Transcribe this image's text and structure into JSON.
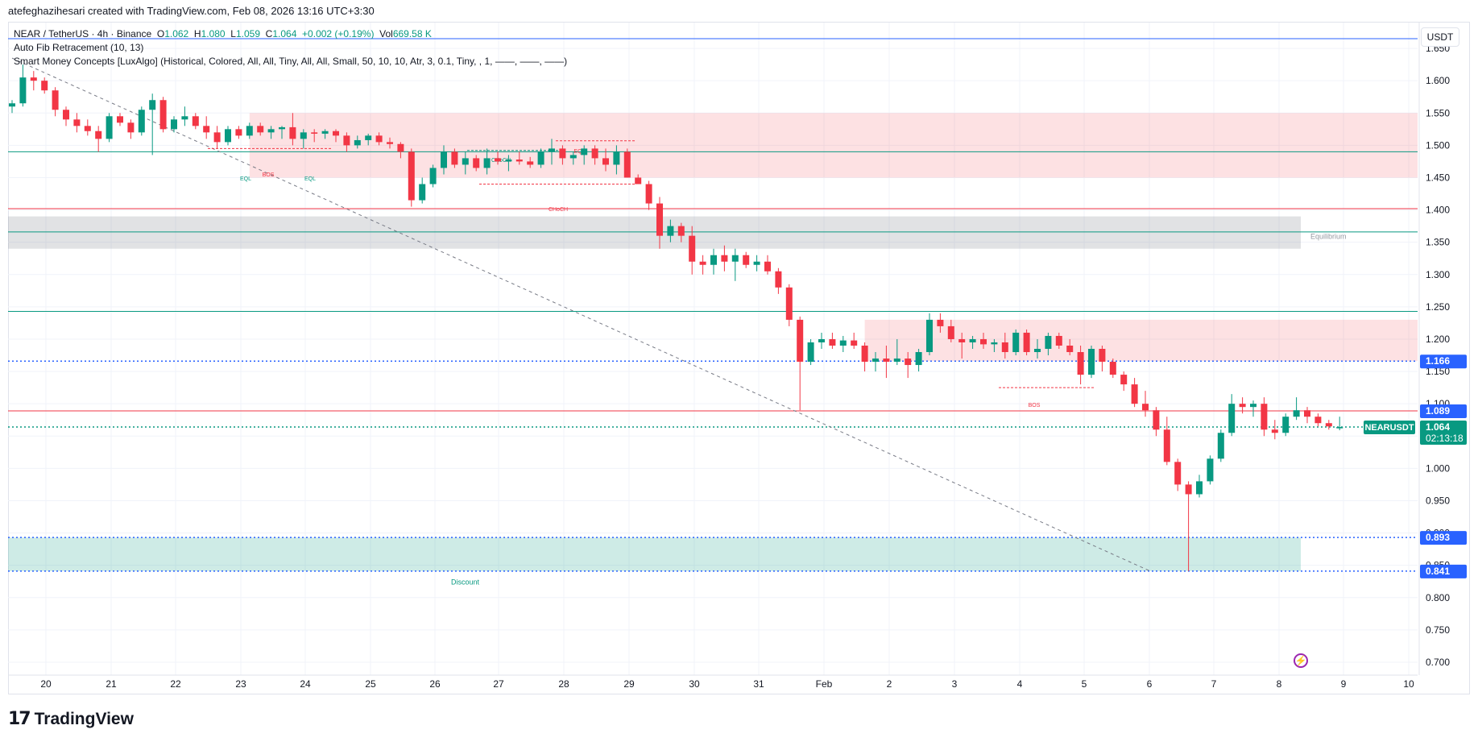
{
  "caption": "atefeghazihesari created with TradingView.com, Feb 08, 2026 13:16 UTC+3:30",
  "legend": {
    "symbol": "NEAR / TetherUS · 4h · Binance",
    "o_label": "O",
    "o": "1.062",
    "h_label": "H",
    "h": "1.080",
    "l_label": "L",
    "l": "1.059",
    "c_label": "C",
    "c": "1.064",
    "change": "+0.002 (+0.19%)",
    "vol_label": "Vol",
    "vol": "669.58 K",
    "ind1": "Auto Fib Retracement (10, 13)",
    "ind2": "Smart Money Concepts [LuxAlgo] (Historical, Colored, All, All, Tiny, All, All, Small, 50, 10, 10, Atr, 3, 0.1, Tiny, , 1, ——, ——, ——)"
  },
  "currency": "USDT",
  "brand": "TradingView",
  "colors": {
    "up": "#089981",
    "down": "#f23645",
    "blue": "#2962ff",
    "premium": "#f23645",
    "discount": "#089981",
    "equilibrium": "#c9c9c9"
  },
  "chart_data": {
    "type": "candlestick",
    "symbol": "NEARUSDT",
    "interval": "4h",
    "x_axis": {
      "tick_labels": [
        "20",
        "21",
        "22",
        "23",
        "24",
        "25",
        "26",
        "27",
        "28",
        "29",
        "30",
        "31",
        "Feb",
        "2",
        "3",
        "4",
        "5",
        "6",
        "7",
        "8",
        "9",
        "10"
      ]
    },
    "y_axis": {
      "range": [
        0.68,
        1.69
      ],
      "tick_labels": [
        "1.650",
        "1.600",
        "1.550",
        "1.500",
        "1.450",
        "1.400",
        "1.350",
        "1.300",
        "1.250",
        "1.200",
        "1.150",
        "1.100",
        "1.050",
        "1.000",
        "0.950",
        "0.900",
        "0.850",
        "0.800",
        "0.750",
        "0.700"
      ]
    },
    "price_tags": [
      {
        "value": "1.166",
        "color": "#2962ff"
      },
      {
        "value": "1.089",
        "color": "#2962ff"
      },
      {
        "value": "1.064",
        "sub": "02:13:18",
        "label": "NEARUSDT",
        "color": "#089981"
      },
      {
        "value": "0.893",
        "color": "#2962ff"
      },
      {
        "value": "0.841",
        "color": "#2962ff"
      }
    ],
    "candles": [
      [
        1.56,
        1.57,
        1.55,
        1.565
      ],
      [
        1.565,
        1.625,
        1.56,
        1.605
      ],
      [
        1.605,
        1.615,
        1.585,
        1.6
      ],
      [
        1.6,
        1.605,
        1.58,
        1.585
      ],
      [
        1.585,
        1.59,
        1.545,
        1.555
      ],
      [
        1.555,
        1.56,
        1.53,
        1.54
      ],
      [
        1.54,
        1.55,
        1.52,
        1.53
      ],
      [
        1.53,
        1.54,
        1.515,
        1.522
      ],
      [
        1.522,
        1.53,
        1.49,
        1.51
      ],
      [
        1.51,
        1.55,
        1.505,
        1.545
      ],
      [
        1.545,
        1.55,
        1.53,
        1.535
      ],
      [
        1.535,
        1.54,
        1.51,
        1.52
      ],
      [
        1.52,
        1.56,
        1.515,
        1.555
      ],
      [
        1.555,
        1.58,
        1.485,
        1.57
      ],
      [
        1.57,
        1.575,
        1.52,
        1.525
      ],
      [
        1.525,
        1.545,
        1.52,
        1.54
      ],
      [
        1.54,
        1.56,
        1.53,
        1.545
      ],
      [
        1.545,
        1.55,
        1.525,
        1.53
      ],
      [
        1.53,
        1.545,
        1.51,
        1.52
      ],
      [
        1.52,
        1.53,
        1.495,
        1.505
      ],
      [
        1.505,
        1.53,
        1.5,
        1.525
      ],
      [
        1.525,
        1.53,
        1.51,
        1.515
      ],
      [
        1.515,
        1.535,
        1.51,
        1.53
      ],
      [
        1.53,
        1.535,
        1.515,
        1.52
      ],
      [
        1.52,
        1.53,
        1.51,
        1.525
      ],
      [
        1.525,
        1.53,
        1.51,
        1.528
      ],
      [
        1.528,
        1.55,
        1.5,
        1.51
      ],
      [
        1.51,
        1.525,
        1.495,
        1.52
      ],
      [
        1.52,
        1.525,
        1.505,
        1.518
      ],
      [
        1.518,
        1.525,
        1.51,
        1.522
      ],
      [
        1.522,
        1.525,
        1.505,
        1.515
      ],
      [
        1.515,
        1.52,
        1.49,
        1.5
      ],
      [
        1.5,
        1.515,
        1.495,
        1.508
      ],
      [
        1.508,
        1.518,
        1.5,
        1.515
      ],
      [
        1.515,
        1.52,
        1.5,
        1.505
      ],
      [
        1.505,
        1.512,
        1.495,
        1.502
      ],
      [
        1.502,
        1.505,
        1.48,
        1.49
      ],
      [
        1.49,
        1.495,
        1.405,
        1.415
      ],
      [
        1.415,
        1.45,
        1.41,
        1.44
      ],
      [
        1.44,
        1.47,
        1.435,
        1.465
      ],
      [
        1.465,
        1.5,
        1.455,
        1.49
      ],
      [
        1.49,
        1.495,
        1.465,
        1.47
      ],
      [
        1.47,
        1.49,
        1.455,
        1.48
      ],
      [
        1.48,
        1.485,
        1.46,
        1.465
      ],
      [
        1.465,
        1.495,
        1.455,
        1.48
      ],
      [
        1.48,
        1.49,
        1.47,
        1.475
      ],
      [
        1.475,
        1.485,
        1.46,
        1.478
      ],
      [
        1.478,
        1.49,
        1.47,
        1.475
      ],
      [
        1.475,
        1.482,
        1.465,
        1.47
      ],
      [
        1.47,
        1.495,
        1.465,
        1.49
      ],
      [
        1.49,
        1.51,
        1.47,
        1.495
      ],
      [
        1.495,
        1.5,
        1.47,
        1.48
      ],
      [
        1.48,
        1.49,
        1.47,
        1.485
      ],
      [
        1.485,
        1.5,
        1.47,
        1.495
      ],
      [
        1.495,
        1.5,
        1.47,
        1.48
      ],
      [
        1.48,
        1.495,
        1.46,
        1.47
      ],
      [
        1.47,
        1.5,
        1.455,
        1.49
      ],
      [
        1.49,
        1.495,
        1.45,
        1.45
      ],
      [
        1.45,
        1.455,
        1.44,
        1.44
      ],
      [
        1.44,
        1.445,
        1.4,
        1.41
      ],
      [
        1.41,
        1.42,
        1.34,
        1.36
      ],
      [
        1.36,
        1.385,
        1.35,
        1.375
      ],
      [
        1.375,
        1.38,
        1.35,
        1.36
      ],
      [
        1.36,
        1.375,
        1.3,
        1.32
      ],
      [
        1.32,
        1.33,
        1.3,
        1.315
      ],
      [
        1.315,
        1.34,
        1.3,
        1.33
      ],
      [
        1.33,
        1.345,
        1.305,
        1.32
      ],
      [
        1.32,
        1.34,
        1.29,
        1.33
      ],
      [
        1.33,
        1.335,
        1.31,
        1.315
      ],
      [
        1.315,
        1.33,
        1.305,
        1.32
      ],
      [
        1.32,
        1.33,
        1.3,
        1.305
      ],
      [
        1.305,
        1.31,
        1.27,
        1.28
      ],
      [
        1.28,
        1.285,
        1.22,
        1.23
      ],
      [
        1.23,
        1.235,
        1.09,
        1.165
      ],
      [
        1.165,
        1.2,
        1.16,
        1.195
      ],
      [
        1.195,
        1.21,
        1.185,
        1.2
      ],
      [
        1.2,
        1.21,
        1.185,
        1.19
      ],
      [
        1.19,
        1.205,
        1.18,
        1.198
      ],
      [
        1.198,
        1.21,
        1.185,
        1.19
      ],
      [
        1.19,
        1.195,
        1.15,
        1.165
      ],
      [
        1.165,
        1.18,
        1.15,
        1.17
      ],
      [
        1.17,
        1.19,
        1.14,
        1.165
      ],
      [
        1.165,
        1.2,
        1.16,
        1.17
      ],
      [
        1.17,
        1.18,
        1.14,
        1.16
      ],
      [
        1.16,
        1.185,
        1.15,
        1.18
      ],
      [
        1.18,
        1.24,
        1.175,
        1.23
      ],
      [
        1.23,
        1.24,
        1.21,
        1.22
      ],
      [
        1.22,
        1.23,
        1.195,
        1.2
      ],
      [
        1.2,
        1.21,
        1.17,
        1.195
      ],
      [
        1.195,
        1.205,
        1.185,
        1.2
      ],
      [
        1.2,
        1.21,
        1.185,
        1.192
      ],
      [
        1.192,
        1.2,
        1.18,
        1.195
      ],
      [
        1.195,
        1.21,
        1.17,
        1.18
      ],
      [
        1.18,
        1.215,
        1.175,
        1.21
      ],
      [
        1.21,
        1.215,
        1.175,
        1.18
      ],
      [
        1.18,
        1.2,
        1.17,
        1.185
      ],
      [
        1.185,
        1.21,
        1.175,
        1.205
      ],
      [
        1.205,
        1.21,
        1.185,
        1.19
      ],
      [
        1.19,
        1.2,
        1.175,
        1.18
      ],
      [
        1.18,
        1.19,
        1.13,
        1.145
      ],
      [
        1.145,
        1.19,
        1.14,
        1.185
      ],
      [
        1.185,
        1.19,
        1.15,
        1.165
      ],
      [
        1.165,
        1.17,
        1.14,
        1.145
      ],
      [
        1.145,
        1.15,
        1.12,
        1.13
      ],
      [
        1.13,
        1.14,
        1.095,
        1.1
      ],
      [
        1.1,
        1.12,
        1.08,
        1.09
      ],
      [
        1.09,
        1.095,
        1.05,
        1.06
      ],
      [
        1.06,
        1.08,
        1.005,
        1.01
      ],
      [
        1.01,
        1.015,
        0.965,
        0.975
      ],
      [
        0.975,
        0.98,
        0.841,
        0.96
      ],
      [
        0.96,
        0.99,
        0.955,
        0.98
      ],
      [
        0.98,
        1.02,
        0.975,
        1.015
      ],
      [
        1.015,
        1.06,
        1.01,
        1.055
      ],
      [
        1.055,
        1.115,
        1.05,
        1.1
      ],
      [
        1.1,
        1.11,
        1.085,
        1.095
      ],
      [
        1.095,
        1.105,
        1.08,
        1.1
      ],
      [
        1.1,
        1.11,
        1.05,
        1.06
      ],
      [
        1.06,
        1.075,
        1.045,
        1.055
      ],
      [
        1.055,
        1.085,
        1.05,
        1.08
      ],
      [
        1.08,
        1.11,
        1.075,
        1.09
      ],
      [
        1.09,
        1.095,
        1.07,
        1.08
      ],
      [
        1.08,
        1.085,
        1.065,
        1.07
      ],
      [
        1.07,
        1.075,
        1.06,
        1.065
      ],
      [
        1.062,
        1.08,
        1.059,
        1.064
      ]
    ],
    "overlays": {
      "premium_zone": {
        "top": 1.55,
        "bottom": 1.45,
        "label": ""
      },
      "equilibrium_zone": {
        "top": 1.39,
        "bottom": 1.34,
        "label": "Equilibrium"
      },
      "discount_zone": {
        "top": 0.893,
        "bottom": 0.841,
        "label": "Discount"
      },
      "supply_zone": {
        "top": 1.23,
        "bottom": 1.166
      },
      "lines": [
        {
          "value": 1.665,
          "color": "#2962ff"
        },
        {
          "value": 1.49,
          "color": "#089981"
        },
        {
          "value": 1.402,
          "color": "#f23645"
        },
        {
          "value": 1.366,
          "color": "#089981"
        },
        {
          "value": 1.243,
          "color": "#089981"
        },
        {
          "value": 1.166,
          "color": "#2962ff",
          "dotted": true
        },
        {
          "value": 1.089,
          "color": "#f23645"
        },
        {
          "value": 1.064,
          "color": "#089981",
          "dotted": true
        },
        {
          "value": 0.893,
          "color": "#2962ff",
          "dotted": true
        },
        {
          "value": 0.841,
          "color": "#2962ff",
          "dotted": true
        }
      ],
      "structure_labels": [
        {
          "text": "EQL",
          "color": "#089981"
        },
        {
          "text": "BOS",
          "color": "#f23645"
        },
        {
          "text": "EQL",
          "color": "#089981"
        },
        {
          "text": "CHoCH",
          "color": "#089981"
        },
        {
          "text": "EQH",
          "color": "#f23645"
        },
        {
          "text": "CHoCH",
          "color": "#f23645"
        },
        {
          "text": "BOS",
          "color": "#f23645"
        }
      ]
    }
  }
}
